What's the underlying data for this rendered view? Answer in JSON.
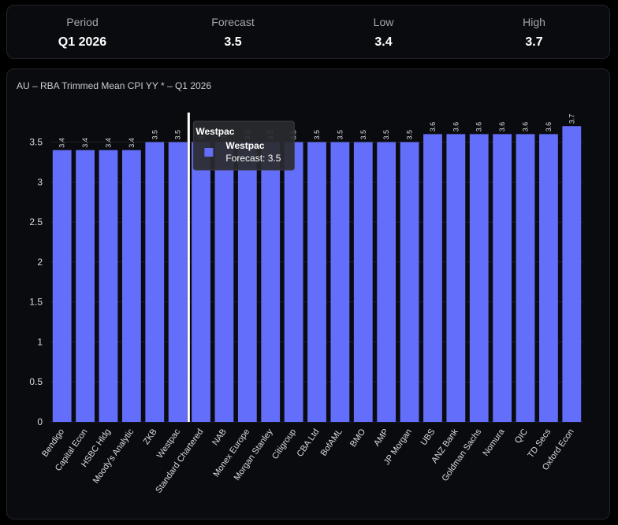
{
  "summary": {
    "period_label": "Period",
    "period_value": "Q1 2026",
    "forecast_label": "Forecast",
    "forecast_value": "3.5",
    "low_label": "Low",
    "low_value": "3.4",
    "high_label": "High",
    "high_value": "3.7"
  },
  "colors": {
    "bar": "#636efa",
    "grid": "#1f2126",
    "text": "#d8dade"
  },
  "chart_data": {
    "type": "bar",
    "title": "AU – RBA Trimmed Mean CPI YY * – Q1 2026",
    "xlabel": "",
    "ylabel": "",
    "ylim": [
      0,
      3.85
    ],
    "yticks": [
      0,
      0.5,
      1,
      1.5,
      2,
      2.5,
      3,
      3.5
    ],
    "categories": [
      "Bendigo",
      "Capital Econ",
      "HSBC Hldg",
      "Moody's Analytic",
      "ZKB",
      "Westpac",
      "Standard Chartered",
      "NAB",
      "Monex Europe",
      "Morgan Stanley",
      "Citigroup",
      "CBA Ltd",
      "BofAML",
      "BMO",
      "AMP",
      "JP Morgan",
      "UBS",
      "ANZ Bank",
      "Goldman Sachs",
      "Nomura",
      "QIC",
      "TD Secs",
      "Oxford Econ"
    ],
    "values": [
      3.4,
      3.4,
      3.4,
      3.4,
      3.5,
      3.5,
      3.5,
      3.5,
      3.5,
      3.5,
      3.5,
      3.5,
      3.5,
      3.5,
      3.5,
      3.5,
      3.6,
      3.6,
      3.6,
      3.6,
      3.6,
      3.6,
      3.7
    ],
    "hover": {
      "index": 5,
      "title": "Westpac",
      "series_name": "Westpac",
      "value_text": "Forecast: 3.5"
    }
  }
}
